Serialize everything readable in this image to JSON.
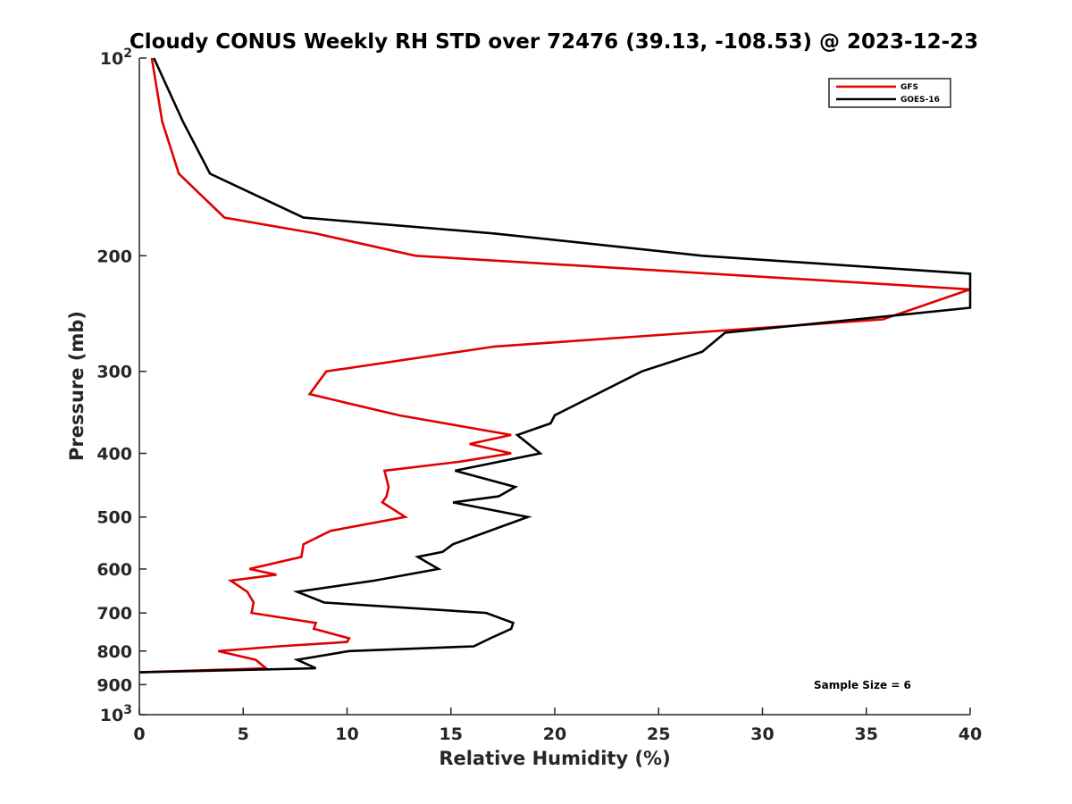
{
  "chart_data": {
    "type": "line",
    "title": "Cloudy CONUS Weekly RH STD over 72476 (39.13, -108.53) @ 2023-12-23",
    "xlabel": "Relative Humidity (%)",
    "ylabel": "Pressure (mb)",
    "xlim": [
      0,
      40
    ],
    "ylim": [
      100,
      1000
    ],
    "yscale": "log",
    "y_reversed": true,
    "x_ticks": [
      "0",
      "5",
      "10",
      "15",
      "20",
      "25",
      "30",
      "35",
      "40"
    ],
    "y_ticks": [
      {
        "value": 100,
        "base": "10",
        "exp": "2"
      },
      {
        "value": 200,
        "label": "200"
      },
      {
        "value": 300,
        "label": "300"
      },
      {
        "value": 400,
        "label": "400"
      },
      {
        "value": 500,
        "label": "500"
      },
      {
        "value": 600,
        "label": "600"
      },
      {
        "value": 700,
        "label": "700"
      },
      {
        "value": 800,
        "label": "800"
      },
      {
        "value": 900,
        "label": "900"
      },
      {
        "value": 1000,
        "base": "10",
        "exp": "3"
      }
    ],
    "grid": false,
    "legend_position": "top-right",
    "annotation": "Sample Size = 6",
    "series": [
      {
        "name": "GFS",
        "color": "#e00000",
        "points": [
          [
            0.6,
            100
          ],
          [
            1.1,
            125
          ],
          [
            1.9,
            150
          ],
          [
            4.1,
            175
          ],
          [
            8.5,
            185
          ],
          [
            13.3,
            200
          ],
          [
            40.0,
            225
          ],
          [
            35.8,
            250
          ],
          [
            17.1,
            275
          ],
          [
            9.0,
            300
          ],
          [
            8.2,
            325
          ],
          [
            12.5,
            350
          ],
          [
            17.9,
            375
          ],
          [
            15.9,
            387
          ],
          [
            17.9,
            400
          ],
          [
            15.4,
            412
          ],
          [
            11.8,
            425
          ],
          [
            12.0,
            450
          ],
          [
            11.9,
            465
          ],
          [
            11.7,
            475
          ],
          [
            12.8,
            500
          ],
          [
            9.2,
            525
          ],
          [
            7.9,
            550
          ],
          [
            7.8,
            575
          ],
          [
            5.3,
            600
          ],
          [
            6.6,
            612
          ],
          [
            4.4,
            625
          ],
          [
            5.2,
            650
          ],
          [
            5.5,
            675
          ],
          [
            5.4,
            700
          ],
          [
            8.5,
            725
          ],
          [
            8.4,
            740
          ],
          [
            10.1,
            765
          ],
          [
            10.0,
            775
          ],
          [
            6.7,
            787
          ],
          [
            3.8,
            800
          ],
          [
            5.6,
            825
          ],
          [
            6.1,
            850
          ],
          [
            0.0,
            862
          ]
        ]
      },
      {
        "name": "GOES-16",
        "color": "#000000",
        "points": [
          [
            0.7,
            100
          ],
          [
            2.1,
            125
          ],
          [
            3.4,
            150
          ],
          [
            7.9,
            175
          ],
          [
            17.1,
            185
          ],
          [
            27.1,
            200
          ],
          [
            40.0,
            213
          ],
          [
            40.0,
            240
          ],
          [
            28.2,
            262
          ],
          [
            27.1,
            280
          ],
          [
            24.2,
            300
          ],
          [
            20.0,
            350
          ],
          [
            19.8,
            360
          ],
          [
            18.2,
            375
          ],
          [
            19.3,
            400
          ],
          [
            15.2,
            425
          ],
          [
            18.1,
            450
          ],
          [
            17.3,
            465
          ],
          [
            15.1,
            475
          ],
          [
            18.7,
            500
          ],
          [
            15.1,
            550
          ],
          [
            14.6,
            565
          ],
          [
            13.4,
            575
          ],
          [
            14.4,
            600
          ],
          [
            11.3,
            625
          ],
          [
            7.6,
            650
          ],
          [
            8.9,
            675
          ],
          [
            16.7,
            700
          ],
          [
            18.0,
            725
          ],
          [
            17.9,
            740
          ],
          [
            16.9,
            765
          ],
          [
            16.1,
            787
          ],
          [
            10.1,
            800
          ],
          [
            7.6,
            825
          ],
          [
            8.5,
            850
          ],
          [
            0.0,
            862
          ]
        ]
      }
    ]
  }
}
